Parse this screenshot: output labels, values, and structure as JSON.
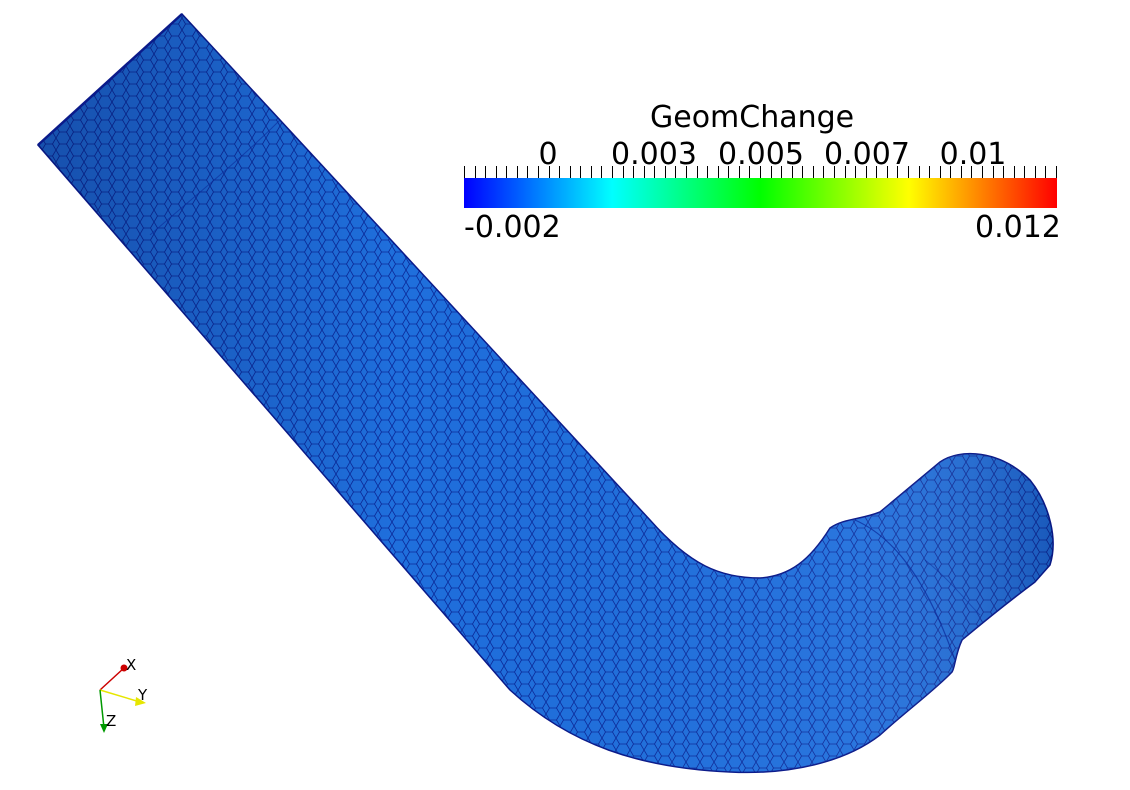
{
  "legend": {
    "title": "GeomChange",
    "ticks": [
      "0",
      "0.003",
      "0.005",
      "0.007",
      "0.01"
    ],
    "min_label": "-0.002",
    "max_label": "0.012",
    "min_value": -0.002,
    "max_value": 0.012,
    "colormap": [
      "#0000ff",
      "#00ffff",
      "#00ff00",
      "#ffff00",
      "#ff0000"
    ]
  },
  "mesh": {
    "surface_color": "#1f6fdc",
    "edge_color": "#0a1a8a"
  },
  "orientation_axes": {
    "x_label": "X",
    "y_label": "Y",
    "z_label": "Z",
    "x_color": "#cc0000",
    "y_color": "#e6e600",
    "z_color": "#009900"
  }
}
